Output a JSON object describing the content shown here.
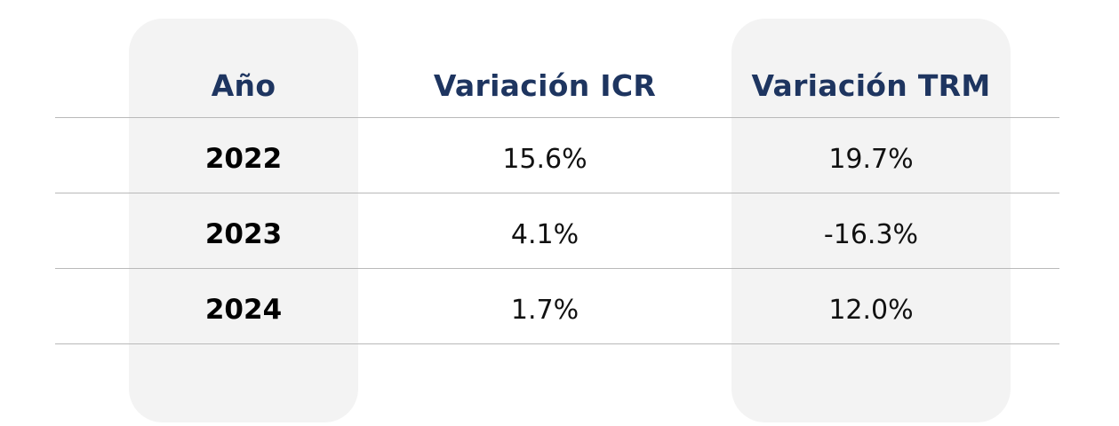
{
  "table": {
    "headers": {
      "year": "Año",
      "icr": "Variación ICR",
      "trm": "Variación TRM"
    },
    "rows": [
      {
        "year": "2022",
        "icr": "15.6%",
        "trm": "19.7%"
      },
      {
        "year": "2023",
        "icr": "4.1%",
        "trm": "-16.3%"
      },
      {
        "year": "2024",
        "icr": "1.7%",
        "trm": "12.0%"
      }
    ]
  },
  "colors": {
    "header_text": "#1e3560",
    "highlight_column_bg": "#f3f3f3",
    "row_divider": "#b9b9b9"
  }
}
